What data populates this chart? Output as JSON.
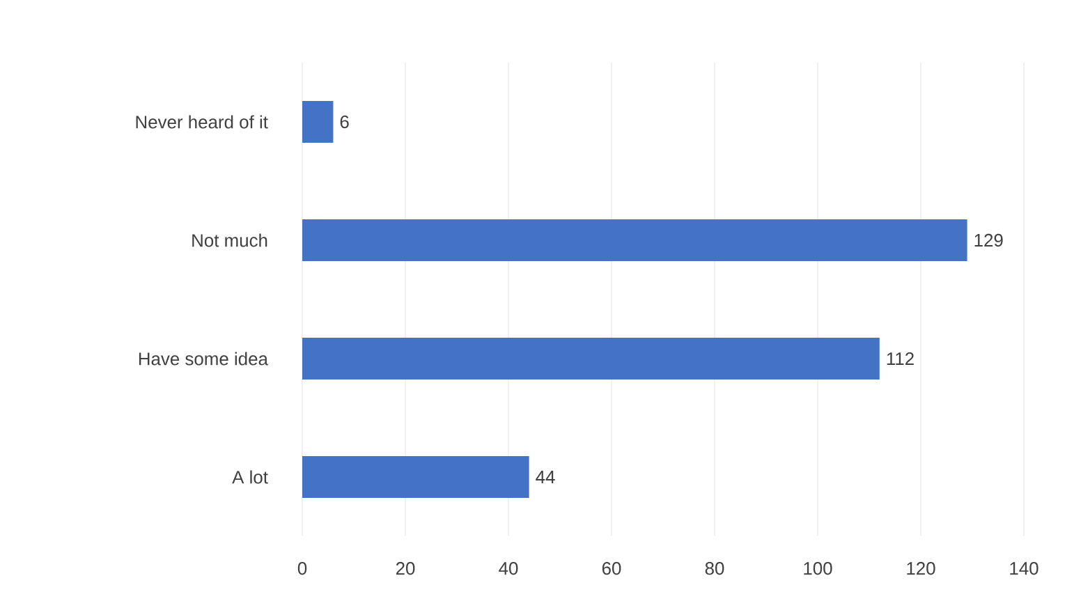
{
  "chart_data": {
    "type": "bar",
    "orientation": "horizontal",
    "categories": [
      "Never heard of it",
      "Not much",
      "Have some idea",
      "A lot"
    ],
    "values": [
      6,
      129,
      112,
      44
    ],
    "color": "#4472c4",
    "xlim": [
      0,
      140
    ],
    "xticks": [
      0,
      20,
      40,
      60,
      80,
      100,
      120,
      140
    ],
    "grid": "x",
    "data_labels": true
  }
}
